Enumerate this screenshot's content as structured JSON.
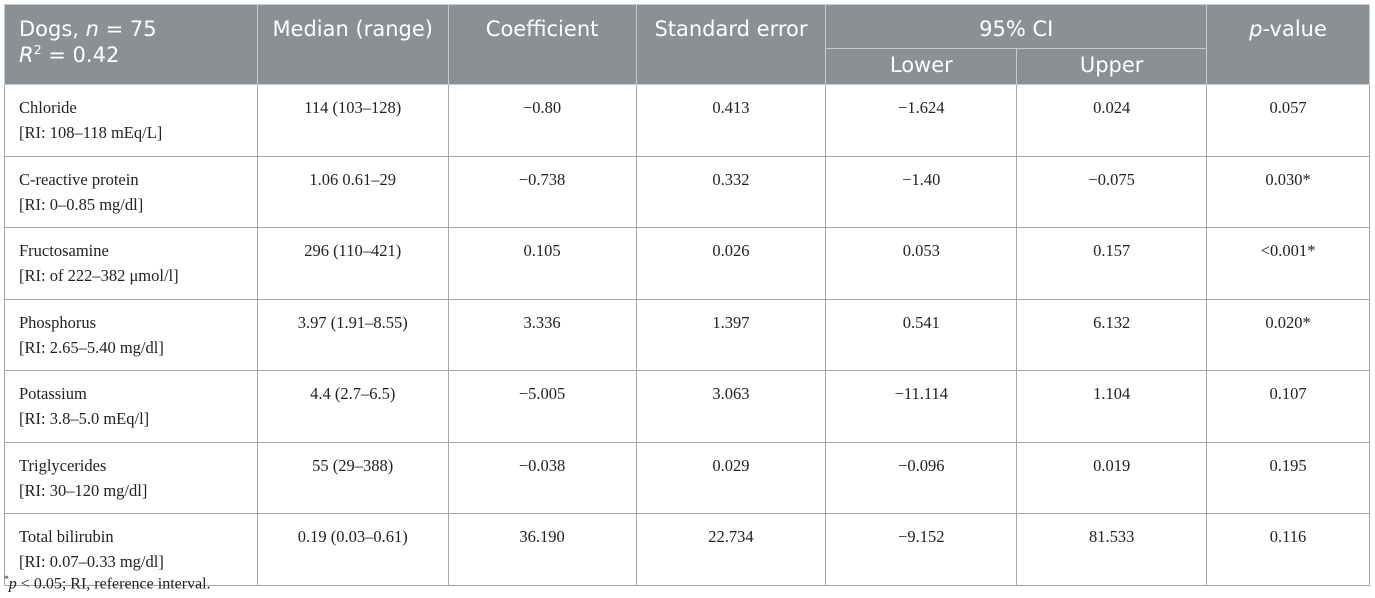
{
  "header": {
    "col1_line1_prefix": "Dogs, ",
    "col1_n": "n",
    "col1_line1_suffix": " = 75",
    "col1_r": "R",
    "col1_r_sup": "2",
    "col1_line2_suffix": " = 0.42",
    "median": "Median (range)",
    "coefficient": "Coefficient",
    "standard_error": "Standard error",
    "ci": "95% CI",
    "lower": "Lower",
    "upper": "Upper",
    "p_italic": "p",
    "p_suffix": "-value"
  },
  "rows": [
    {
      "name": "Chloride",
      "ri": "[RI: 108–118 mEq/L]",
      "median": "114 (103–128)",
      "coef": "−0.80",
      "se": "0.413",
      "lower": "−1.624",
      "upper": "0.024",
      "p": "0.057"
    },
    {
      "name": "C-reactive protein",
      "ri": "[RI: 0–0.85 mg/dl]",
      "median": "1.06 0.61–29",
      "coef": "−0.738",
      "se": "0.332",
      "lower": "−1.40",
      "upper": "−0.075",
      "p": "0.030*"
    },
    {
      "name": "Fructosamine",
      "ri": "[RI: of 222–382 μmol/l]",
      "median": "296 (110–421)",
      "coef": "0.105",
      "se": "0.026",
      "lower": "0.053",
      "upper": "0.157",
      "p": "<0.001*"
    },
    {
      "name": "Phosphorus",
      "ri": "[RI: 2.65–5.40 mg/dl]",
      "median": "3.97 (1.91–8.55)",
      "coef": "3.336",
      "se": "1.397",
      "lower": "0.541",
      "upper": "6.132",
      "p": "0.020*"
    },
    {
      "name": "Potassium",
      "ri": "[RI: 3.8–5.0 mEq/l]",
      "median": "4.4 (2.7–6.5)",
      "coef": "−5.005",
      "se": "3.063",
      "lower": "−11.114",
      "upper": "1.104",
      "p": "0.107"
    },
    {
      "name": "Triglycerides",
      "ri": "[RI: 30–120 mg/dl]",
      "median": "55 (29–388)",
      "coef": "−0.038",
      "se": "0.029",
      "lower": "−0.096",
      "upper": "0.019",
      "p": "0.195"
    },
    {
      "name": "Total bilirubin",
      "ri": "[RI: 0.07–0.33 mg/dl]",
      "median": "0.19 (0.03–0.61)",
      "coef": "36.190",
      "se": "22.734",
      "lower": "−9.152",
      "upper": "81.533",
      "p": "0.116"
    }
  ],
  "footnote": {
    "star": "*",
    "p": "p",
    "text": " < 0.05; RI, reference interval."
  },
  "colors": {
    "header_bg": "#8b9094",
    "header_text": "#ffffff"
  }
}
